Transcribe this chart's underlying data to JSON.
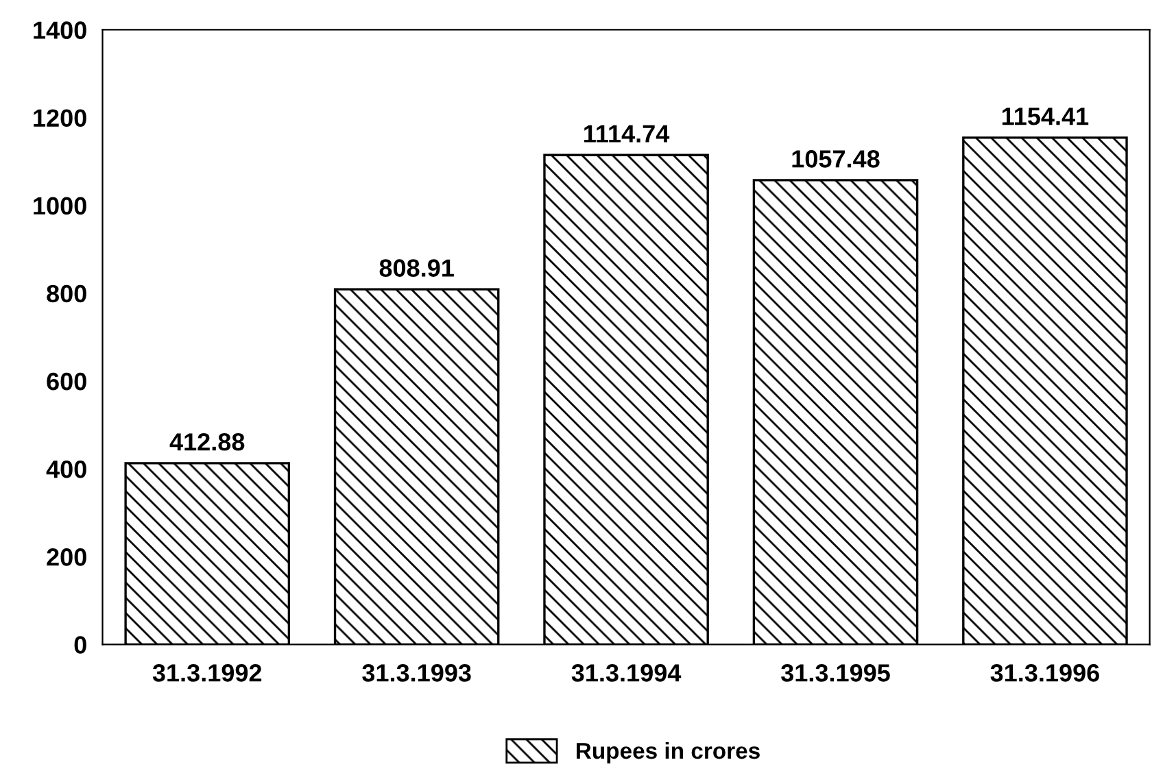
{
  "chart_data": {
    "type": "bar",
    "categories": [
      "31.3.1992",
      "31.3.1993",
      "31.3.1994",
      "31.3.1995",
      "31.3.1996"
    ],
    "series": [
      {
        "name": "Rupees in crores",
        "color": "#000000",
        "values": [
          412.88,
          808.91,
          1114.74,
          1057.48,
          1154.41
        ]
      }
    ],
    "ylim": [
      0,
      1400
    ],
    "yticks": [
      0,
      200,
      400,
      600,
      800,
      1000,
      1200,
      1400
    ],
    "data_labels": true,
    "grid": false,
    "legend": "bottom"
  }
}
